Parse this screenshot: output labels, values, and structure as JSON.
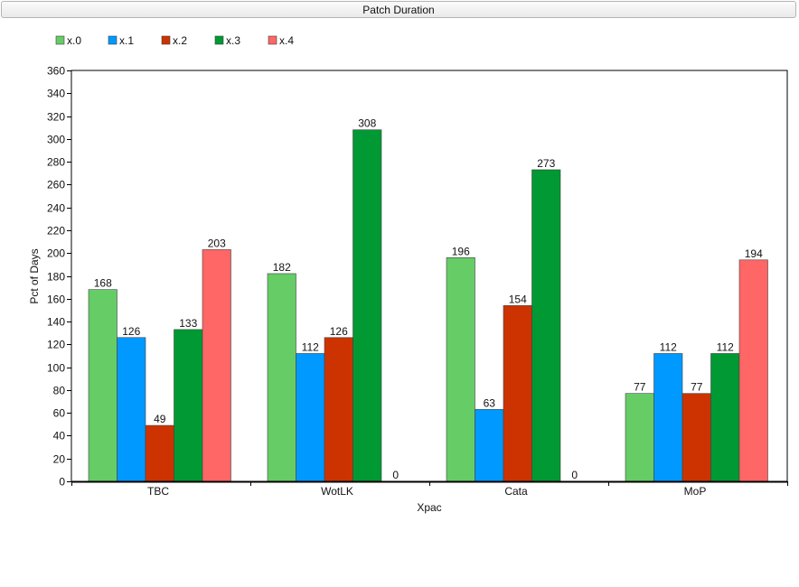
{
  "window": {
    "title": "Patch Duration"
  },
  "chart_data": {
    "type": "bar",
    "title": "",
    "xlabel": "Xpac",
    "ylabel": "Pct of Days",
    "ylim": [
      0,
      360
    ],
    "ytick_step": 20,
    "categories": [
      "TBC",
      "WotLK",
      "Cata",
      "MoP"
    ],
    "series": [
      {
        "name": "x.0",
        "color": "#66cc66",
        "values": [
          168,
          182,
          196,
          77
        ]
      },
      {
        "name": "x.1",
        "color": "#0099ff",
        "values": [
          126,
          112,
          63,
          112
        ]
      },
      {
        "name": "x.2",
        "color": "#cc3300",
        "values": [
          49,
          126,
          154,
          77
        ]
      },
      {
        "name": "x.3",
        "color": "#009933",
        "values": [
          133,
          308,
          273,
          112
        ]
      },
      {
        "name": "x.4",
        "color": "#ff6666",
        "values": [
          203,
          0,
          0,
          194
        ]
      }
    ],
    "legend_position": "top-left",
    "grid": false
  }
}
